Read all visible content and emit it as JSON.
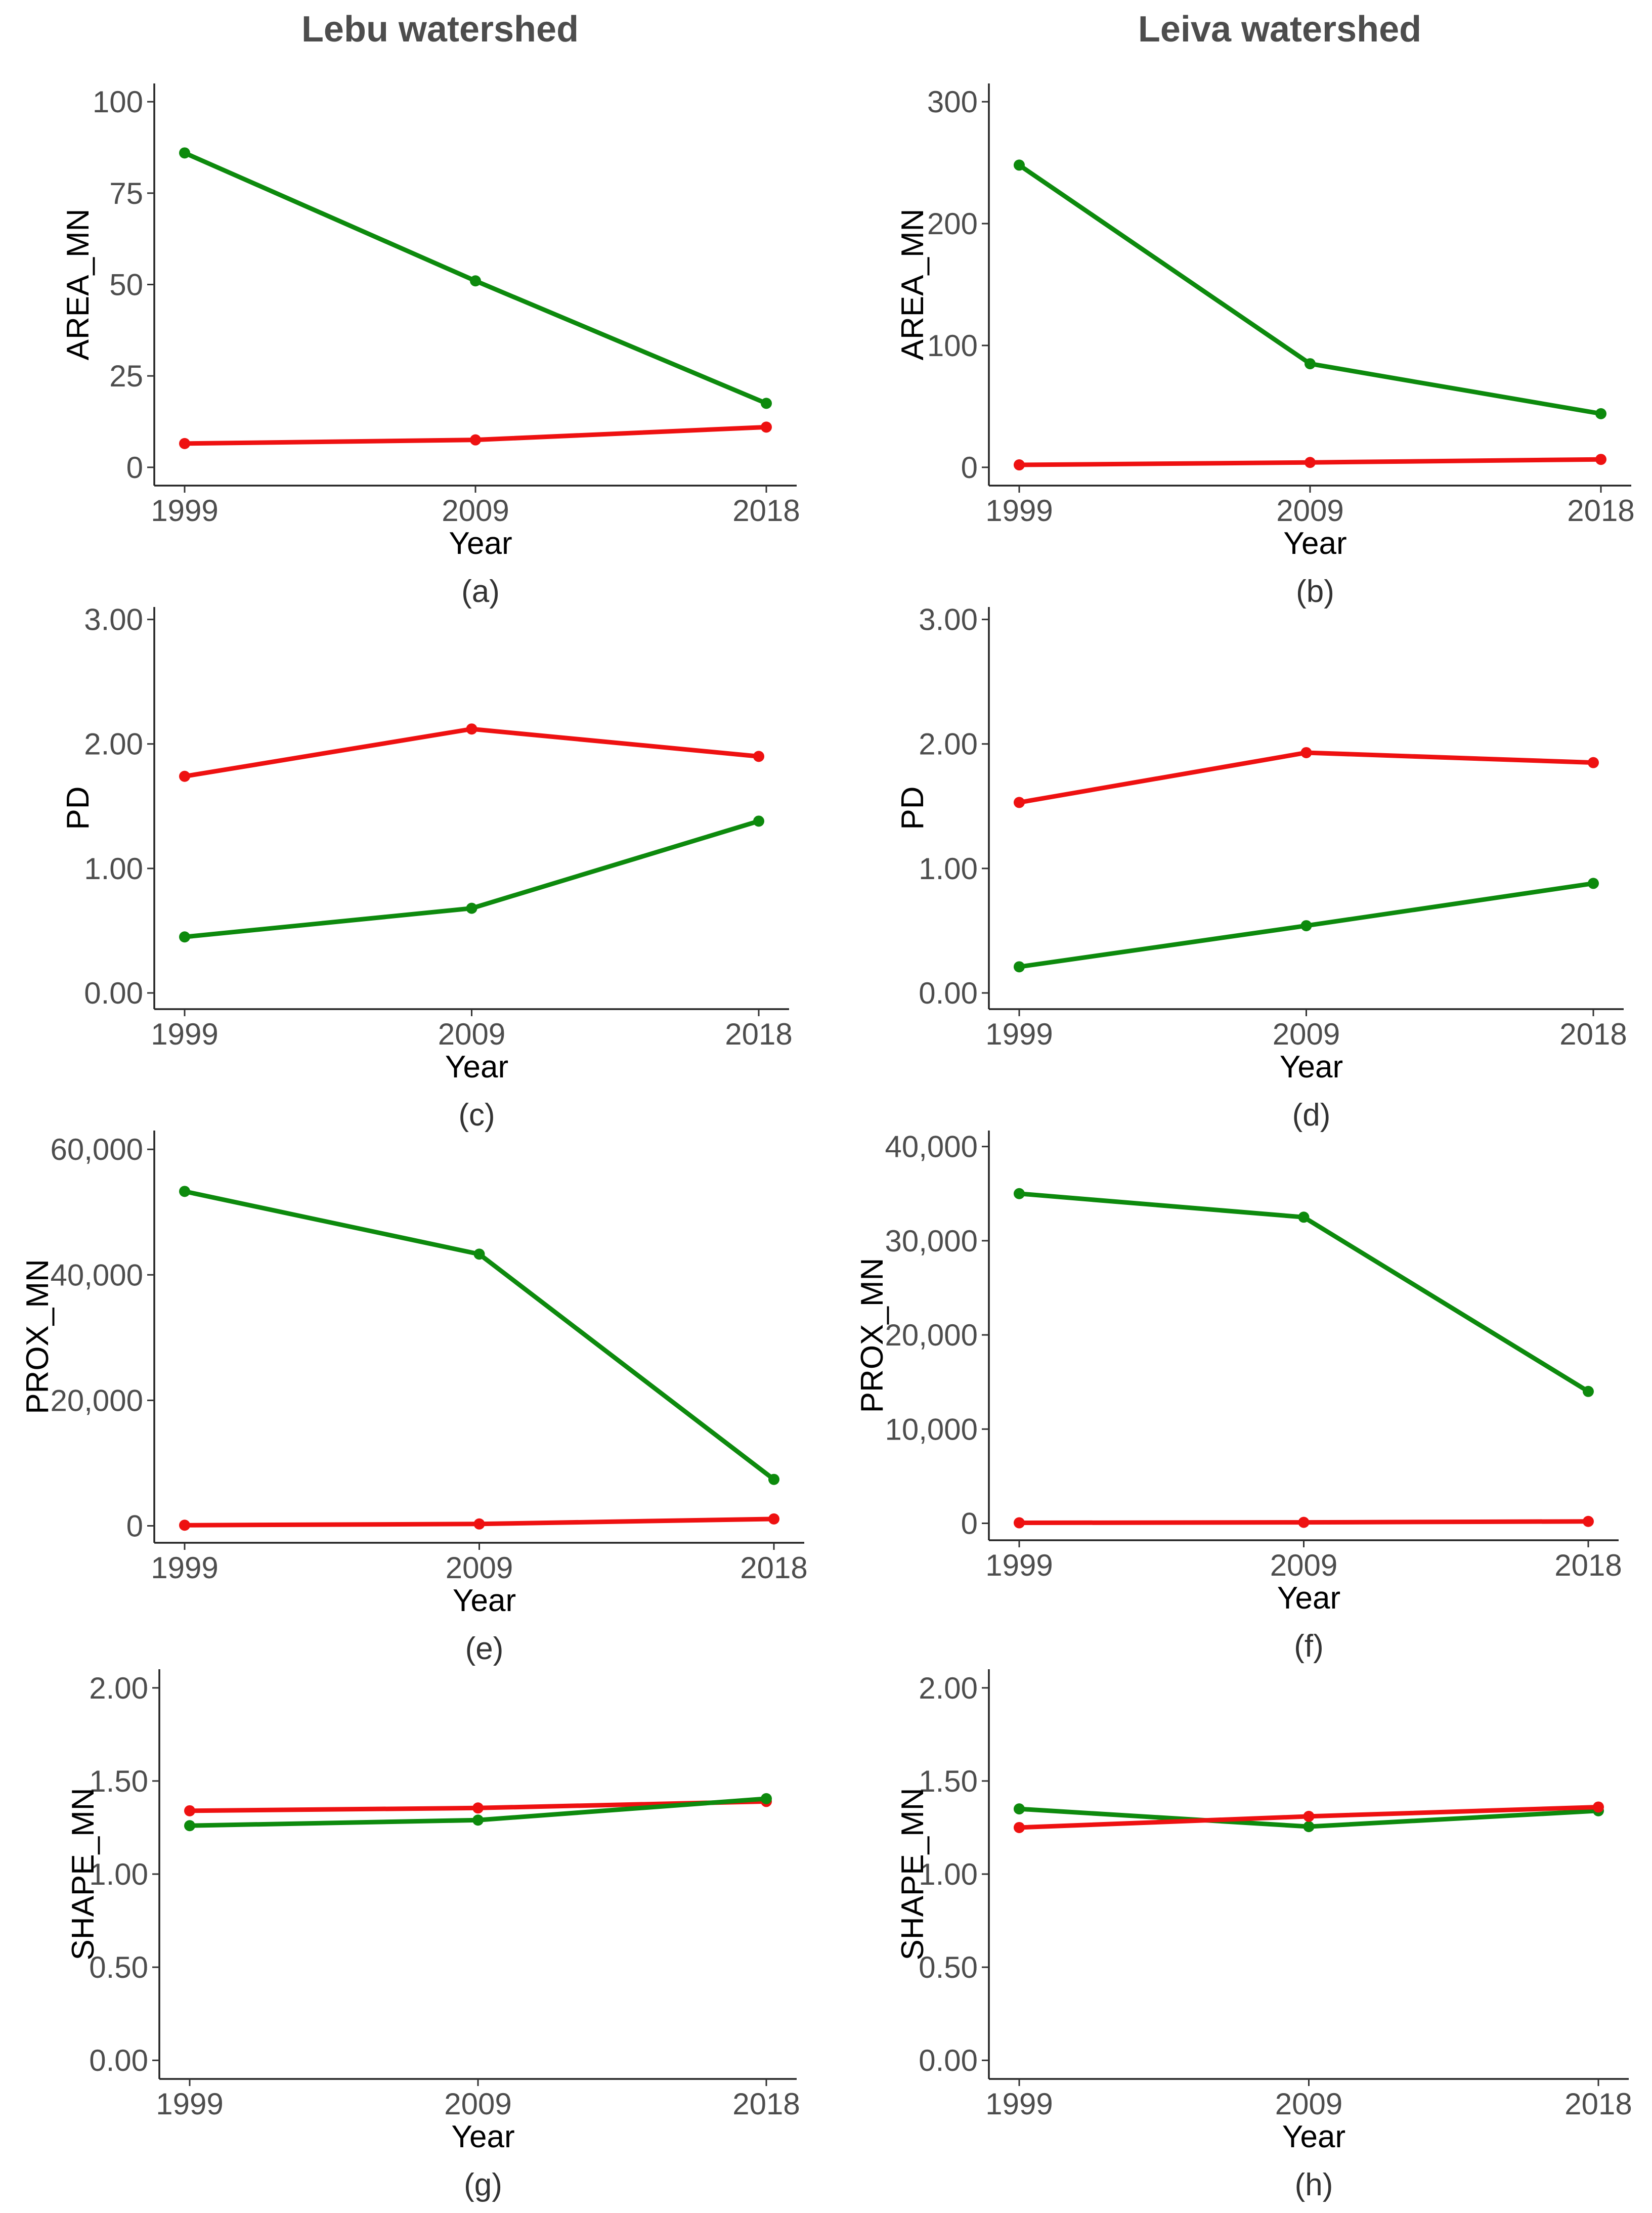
{
  "colors": {
    "red_series": "#ee1111",
    "green_series": "#0d8a0d"
  },
  "column_titles": [
    "Lebu watershed",
    "Leiva watershed"
  ],
  "chart_data": [
    {
      "type": "line",
      "panel_label": "(a)",
      "xlabel": "Year",
      "ylabel": "AREA_MN",
      "x": [
        "1999",
        "2009",
        "2018"
      ],
      "ylim": [
        -5,
        105
      ],
      "yticks": [
        0,
        25,
        50,
        75,
        100
      ],
      "ytick_labels": [
        "0",
        "25",
        "50",
        "75",
        "100"
      ],
      "series": [
        {
          "color": "green",
          "values": [
            86,
            51,
            17.5
          ]
        },
        {
          "color": "red",
          "values": [
            6.5,
            7.5,
            11
          ]
        }
      ]
    },
    {
      "type": "line",
      "panel_label": "(b)",
      "xlabel": "Year",
      "ylabel": "AREA_MN",
      "x": [
        "1999",
        "2009",
        "2018"
      ],
      "ylim": [
        -15,
        315
      ],
      "yticks": [
        0,
        100,
        200,
        300
      ],
      "ytick_labels": [
        "0",
        "100",
        "200",
        "300"
      ],
      "series": [
        {
          "color": "green",
          "values": [
            248,
            85,
            44
          ]
        },
        {
          "color": "red",
          "values": [
            2,
            4,
            6.5
          ]
        }
      ]
    },
    {
      "type": "line",
      "panel_label": "(c)",
      "xlabel": "Year",
      "ylabel": "PD",
      "x": [
        "1999",
        "2009",
        "2018"
      ],
      "ylim": [
        -0.13,
        3.1
      ],
      "yticks": [
        0,
        1,
        2,
        3
      ],
      "ytick_labels": [
        "0.00",
        "1.00",
        "2.00",
        "3.00"
      ],
      "series": [
        {
          "color": "red",
          "values": [
            1.74,
            2.12,
            1.9
          ]
        },
        {
          "color": "green",
          "values": [
            0.45,
            0.68,
            1.38
          ]
        }
      ]
    },
    {
      "type": "line",
      "panel_label": "(d)",
      "xlabel": "Year",
      "ylabel": "PD",
      "x": [
        "1999",
        "2009",
        "2018"
      ],
      "ylim": [
        -0.13,
        3.1
      ],
      "yticks": [
        0,
        1,
        2,
        3
      ],
      "ytick_labels": [
        "0.00",
        "1.00",
        "2.00",
        "3.00"
      ],
      "series": [
        {
          "color": "red",
          "values": [
            1.53,
            1.93,
            1.85
          ]
        },
        {
          "color": "green",
          "values": [
            0.21,
            0.54,
            0.88
          ]
        }
      ]
    },
    {
      "type": "line",
      "panel_label": "(e)",
      "xlabel": "Year",
      "ylabel": "PROX_MN",
      "x": [
        "1999",
        "2009",
        "2018"
      ],
      "ylim": [
        -2700,
        63000
      ],
      "yticks": [
        0,
        20000,
        40000,
        60000
      ],
      "ytick_labels": [
        "0",
        "20,000",
        "40,000",
        "60,000"
      ],
      "series": [
        {
          "color": "green",
          "values": [
            53300,
            43300,
            7400
          ]
        },
        {
          "color": "red",
          "values": [
            100,
            300,
            1100
          ]
        }
      ]
    },
    {
      "type": "line",
      "panel_label": "(f)",
      "xlabel": "Year",
      "ylabel": "PROX_MN",
      "x": [
        "1999",
        "2009",
        "2018"
      ],
      "ylim": [
        -1800,
        41700
      ],
      "yticks": [
        0,
        10000,
        20000,
        30000,
        40000
      ],
      "ytick_labels": [
        "0",
        "10,000",
        "20,000",
        "30,000",
        "40,000"
      ],
      "series": [
        {
          "color": "green",
          "values": [
            35000,
            32500,
            14000
          ]
        },
        {
          "color": "red",
          "values": [
            50,
            100,
            200
          ]
        }
      ]
    },
    {
      "type": "line",
      "panel_label": "(g)",
      "xlabel": "Year",
      "ylabel": "SHAPE_MN",
      "x": [
        "1999",
        "2009",
        "2018"
      ],
      "ylim": [
        -0.1,
        2.1
      ],
      "yticks": [
        0,
        0.5,
        1,
        1.5,
        2
      ],
      "ytick_labels": [
        "0.00",
        "0.50",
        "1.00",
        "1.50",
        "2.00"
      ],
      "series": [
        {
          "color": "red",
          "values": [
            1.34,
            1.355,
            1.39
          ]
        },
        {
          "color": "green",
          "values": [
            1.26,
            1.29,
            1.405
          ]
        }
      ]
    },
    {
      "type": "line",
      "panel_label": "(h)",
      "xlabel": "Year",
      "ylabel": "SHAPE_MN",
      "x": [
        "1999",
        "2009",
        "2018"
      ],
      "ylim": [
        -0.1,
        2.1
      ],
      "yticks": [
        0,
        0.5,
        1,
        1.5,
        2
      ],
      "ytick_labels": [
        "0.00",
        "0.50",
        "1.00",
        "1.50",
        "2.00"
      ],
      "series": [
        {
          "color": "green",
          "values": [
            1.35,
            1.255,
            1.34
          ]
        },
        {
          "color": "red",
          "values": [
            1.25,
            1.31,
            1.36
          ]
        }
      ]
    }
  ]
}
